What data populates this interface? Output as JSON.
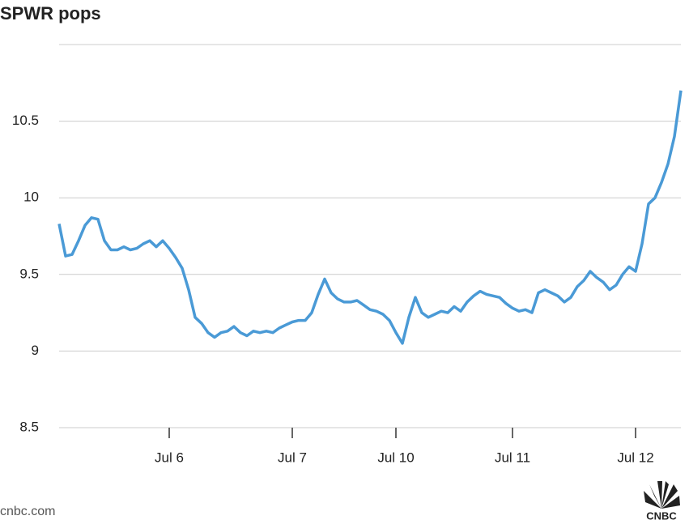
{
  "chart_data": {
    "type": "line",
    "title": "SPWR pops",
    "categories": [
      null,
      null,
      null,
      null,
      null,
      null,
      null,
      null,
      null,
      null,
      null,
      null,
      null,
      null,
      null,
      null,
      null,
      "Jul 6",
      null,
      null,
      null,
      null,
      null,
      null,
      null,
      null,
      null,
      null,
      null,
      null,
      null,
      null,
      null,
      null,
      null,
      null,
      "Jul 7",
      null,
      null,
      null,
      null,
      null,
      null,
      null,
      null,
      null,
      null,
      null,
      null,
      null,
      null,
      null,
      "Jul 10",
      null,
      null,
      null,
      null,
      null,
      null,
      null,
      null,
      null,
      null,
      null,
      null,
      null,
      null,
      null,
      null,
      null,
      "Jul 11",
      null,
      null,
      null,
      null,
      null,
      null,
      null,
      null,
      null,
      null,
      null,
      null,
      null,
      null,
      null,
      null,
      null,
      null,
      "Jul 12",
      null,
      null,
      null,
      null,
      null,
      null,
      null
    ],
    "values": [
      9.83,
      9.62,
      9.63,
      9.72,
      9.82,
      9.87,
      9.86,
      9.72,
      9.66,
      9.66,
      9.68,
      9.66,
      9.67,
      9.7,
      9.72,
      9.68,
      9.72,
      9.67,
      9.61,
      9.54,
      9.4,
      9.22,
      9.18,
      9.12,
      9.09,
      9.12,
      9.13,
      9.16,
      9.12,
      9.1,
      9.13,
      9.12,
      9.13,
      9.12,
      9.15,
      9.17,
      9.19,
      9.2,
      9.2,
      9.25,
      9.37,
      9.47,
      9.38,
      9.34,
      9.32,
      9.32,
      9.33,
      9.3,
      9.27,
      9.26,
      9.24,
      9.2,
      9.12,
      9.05,
      9.22,
      9.35,
      9.25,
      9.22,
      9.24,
      9.26,
      9.25,
      9.29,
      9.26,
      9.32,
      9.36,
      9.39,
      9.37,
      9.36,
      9.35,
      9.31,
      9.28,
      9.26,
      9.27,
      9.25,
      9.38,
      9.4,
      9.38,
      9.36,
      9.32,
      9.35,
      9.42,
      9.46,
      9.52,
      9.48,
      9.45,
      9.4,
      9.43,
      9.5,
      9.55,
      9.52,
      9.7,
      9.96,
      10.0,
      10.1,
      10.22,
      10.4,
      10.7
    ],
    "color": "#4a9ad6",
    "ylim": [
      8.5,
      11
    ],
    "yticks": [
      8.5,
      9,
      9.5,
      10,
      10.5
    ],
    "grid": true,
    "source": "cnbc.com",
    "logo": "CNBC"
  }
}
